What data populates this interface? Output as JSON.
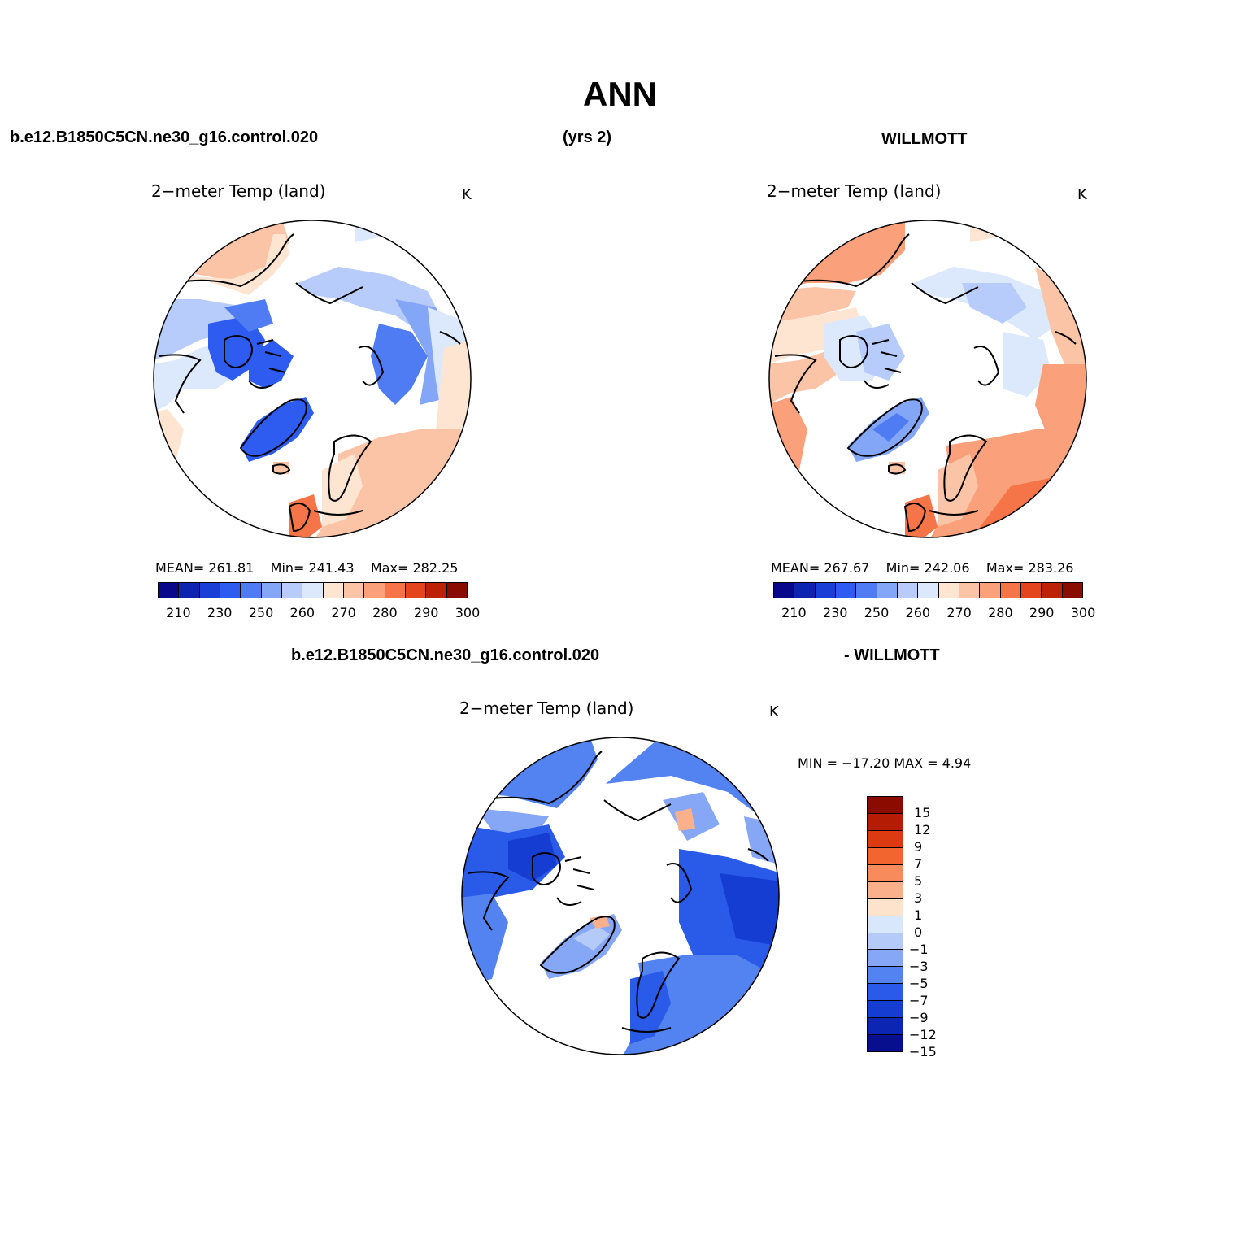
{
  "title": "ANN",
  "header": {
    "case_name": "b.e12.B1850C5CN.ne30_g16.control.020",
    "years": "(yrs 2)",
    "obs_name": "WILLMOTT"
  },
  "diff_header": {
    "case_name": "b.e12.B1850C5CN.ne30_g16.control.020",
    "obs_name": "- WILLMOTT"
  },
  "colors": {
    "land_outline": "#000000",
    "ocean": "#ffffff"
  },
  "panels": [
    {
      "title": "2−meter Temp (land)",
      "units": "K",
      "stats": {
        "mean": "MEAN= 261.81",
        "min": "Min= 241.43",
        "max": "Max= 282.25"
      },
      "projection": "north-polar-stereographic"
    },
    {
      "title": "2−meter Temp (land)",
      "units": "K",
      "stats": {
        "mean": "MEAN= 267.67",
        "min": "Min= 242.06",
        "max": "Max= 283.26"
      },
      "projection": "north-polar-stereographic"
    },
    {
      "title": "2−meter Temp (land)",
      "units": "K",
      "stats": {
        "minmax": "MIN = −17.20 MAX =     4.94"
      },
      "projection": "north-polar-stereographic"
    }
  ],
  "colorbar_abs": {
    "colors": [
      "#08088a",
      "#0c24b0",
      "#1a3fd6",
      "#2e5bf0",
      "#4f7cf2",
      "#84a6f7",
      "#b7ccfa",
      "#dce9fc",
      "#fde5d2",
      "#fcc4a6",
      "#faa07a",
      "#f57448",
      "#e5451c",
      "#bc2206",
      "#8a0b00"
    ],
    "labels": [
      "210",
      "230",
      "250",
      "260",
      "270",
      "280",
      "290",
      "300"
    ]
  },
  "colorbar_diff": {
    "colors_top_to_bottom": [
      "#8a0b00",
      "#b51c04",
      "#dc3a10",
      "#f2652e",
      "#f78b5c",
      "#fbb08c",
      "#fde2cc",
      "#d8e7fb",
      "#b4cbfa",
      "#86a7f5",
      "#5382f1",
      "#2a5ae8",
      "#163dd1",
      "#0c25b3",
      "#070f8e"
    ],
    "labels": [
      "15",
      "12",
      "9",
      "7",
      "5",
      "3",
      "1",
      "0",
      "−1",
      "−3",
      "−5",
      "−7",
      "−9",
      "−12",
      "−15"
    ]
  }
}
